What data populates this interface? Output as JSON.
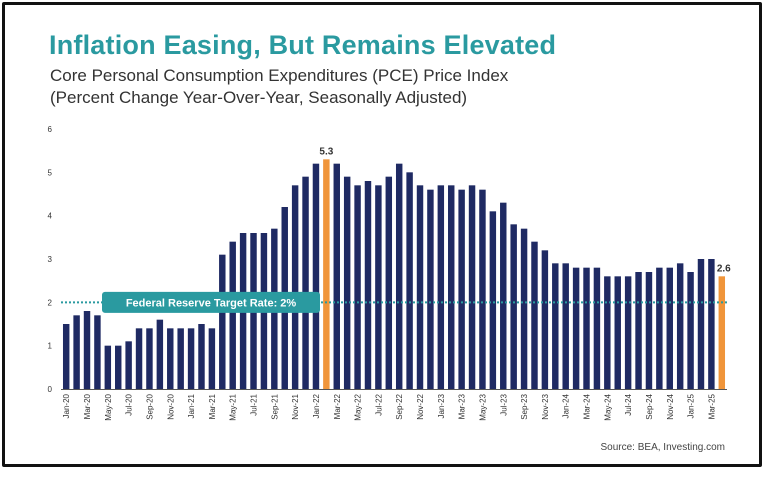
{
  "header": {
    "title": "Inflation Easing, But Remains Elevated",
    "subtitle_line1": "Core Personal Consumption Expenditures (PCE) Price Index",
    "subtitle_line2": "(Percent Change Year-Over-Year, Seasonally Adjusted)"
  },
  "footer": {
    "source": "Source: BEA, Investing.com"
  },
  "colors": {
    "bar": "#1f2a63",
    "highlight": "#f0953a",
    "target_line": "#2a9aa0",
    "title": "#2a9aa0"
  },
  "chart_data": {
    "type": "bar",
    "ylim": [
      0,
      6
    ],
    "yticks": [
      0,
      1,
      2,
      3,
      4,
      5,
      6
    ],
    "grid": false,
    "categories": [
      "Jan-20",
      "Feb-20",
      "Mar-20",
      "Apr-20",
      "May-20",
      "Jun-20",
      "Jul-20",
      "Aug-20",
      "Sep-20",
      "Oct-20",
      "Nov-20",
      "Dec-20",
      "Jan-21",
      "Feb-21",
      "Mar-21",
      "Apr-21",
      "May-21",
      "Jun-21",
      "Jul-21",
      "Aug-21",
      "Sep-21",
      "Oct-21",
      "Nov-21",
      "Dec-21",
      "Jan-22",
      "Feb-22",
      "Mar-22",
      "Apr-22",
      "May-22",
      "Jun-22",
      "Jul-22",
      "Aug-22",
      "Sep-22",
      "Oct-22",
      "Nov-22",
      "Dec-22",
      "Jan-23",
      "Feb-23",
      "Mar-23",
      "Apr-23",
      "May-23",
      "Jun-23",
      "Jul-23",
      "Aug-23",
      "Sep-23",
      "Oct-23",
      "Nov-23",
      "Dec-23",
      "Jan-24",
      "Feb-24",
      "Mar-24",
      "Apr-24",
      "May-24",
      "Jun-24",
      "Jul-24",
      "Aug-24",
      "Sep-24",
      "Oct-24",
      "Nov-24",
      "Dec-24",
      "Jan-25",
      "Feb-25",
      "Mar-25",
      "Apr-25"
    ],
    "xtick_labels": [
      "Jan-20",
      "Mar-20",
      "May-20",
      "Jul-20",
      "Sep-20",
      "Nov-20",
      "Jan-21",
      "Mar-21",
      "May-21",
      "Jul-21",
      "Sep-21",
      "Nov-21",
      "Jan-22",
      "Mar-22",
      "May-22",
      "Jul-22",
      "Sep-22",
      "Nov-22",
      "Jan-23",
      "Mar-23",
      "May-23",
      "Jul-23",
      "Sep-23",
      "Nov-23",
      "Jan-24",
      "Mar-24",
      "May-24",
      "Jul-24",
      "Sep-24",
      "Nov-24",
      "Jan-25",
      "Mar-25"
    ],
    "values": [
      1.5,
      1.7,
      1.8,
      1.7,
      1.0,
      1.0,
      1.1,
      1.4,
      1.4,
      1.6,
      1.4,
      1.4,
      1.4,
      1.5,
      1.4,
      3.1,
      3.4,
      3.6,
      3.6,
      3.6,
      3.7,
      4.2,
      4.7,
      4.9,
      5.2,
      5.3,
      5.2,
      4.9,
      4.7,
      4.8,
      4.7,
      4.9,
      5.2,
      5.0,
      4.7,
      4.6,
      4.7,
      4.7,
      4.6,
      4.7,
      4.6,
      4.1,
      4.3,
      3.8,
      3.7,
      3.4,
      3.2,
      2.9,
      2.9,
      2.8,
      2.8,
      2.8,
      2.6,
      2.6,
      2.6,
      2.7,
      2.7,
      2.8,
      2.8,
      2.9,
      2.7,
      3.0,
      3.0,
      2.6
    ],
    "highlight_indices": [
      25,
      63
    ],
    "data_labels": [
      {
        "index": 25,
        "text": "5.3"
      },
      {
        "index": 63,
        "text": "2.6"
      }
    ],
    "reference_line": {
      "value": 2,
      "label": "Federal Reserve Target Rate: 2%"
    }
  }
}
